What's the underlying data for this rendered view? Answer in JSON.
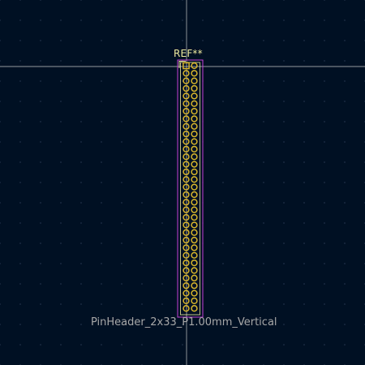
{
  "footprint": {
    "reference": "REF**",
    "value": "PinHeader_2x33_P1.00mm_Vertical",
    "pin_rows": 33,
    "pin_columns": 2
  },
  "colors": {
    "background": "#001023",
    "grid": "#2a3a55",
    "crosshair": "#c8c8c8",
    "pad": "#d9b52c",
    "courtyard": "#c43fd6",
    "silkscreen": "#f2eda1",
    "fab": "#a8a8a8"
  }
}
